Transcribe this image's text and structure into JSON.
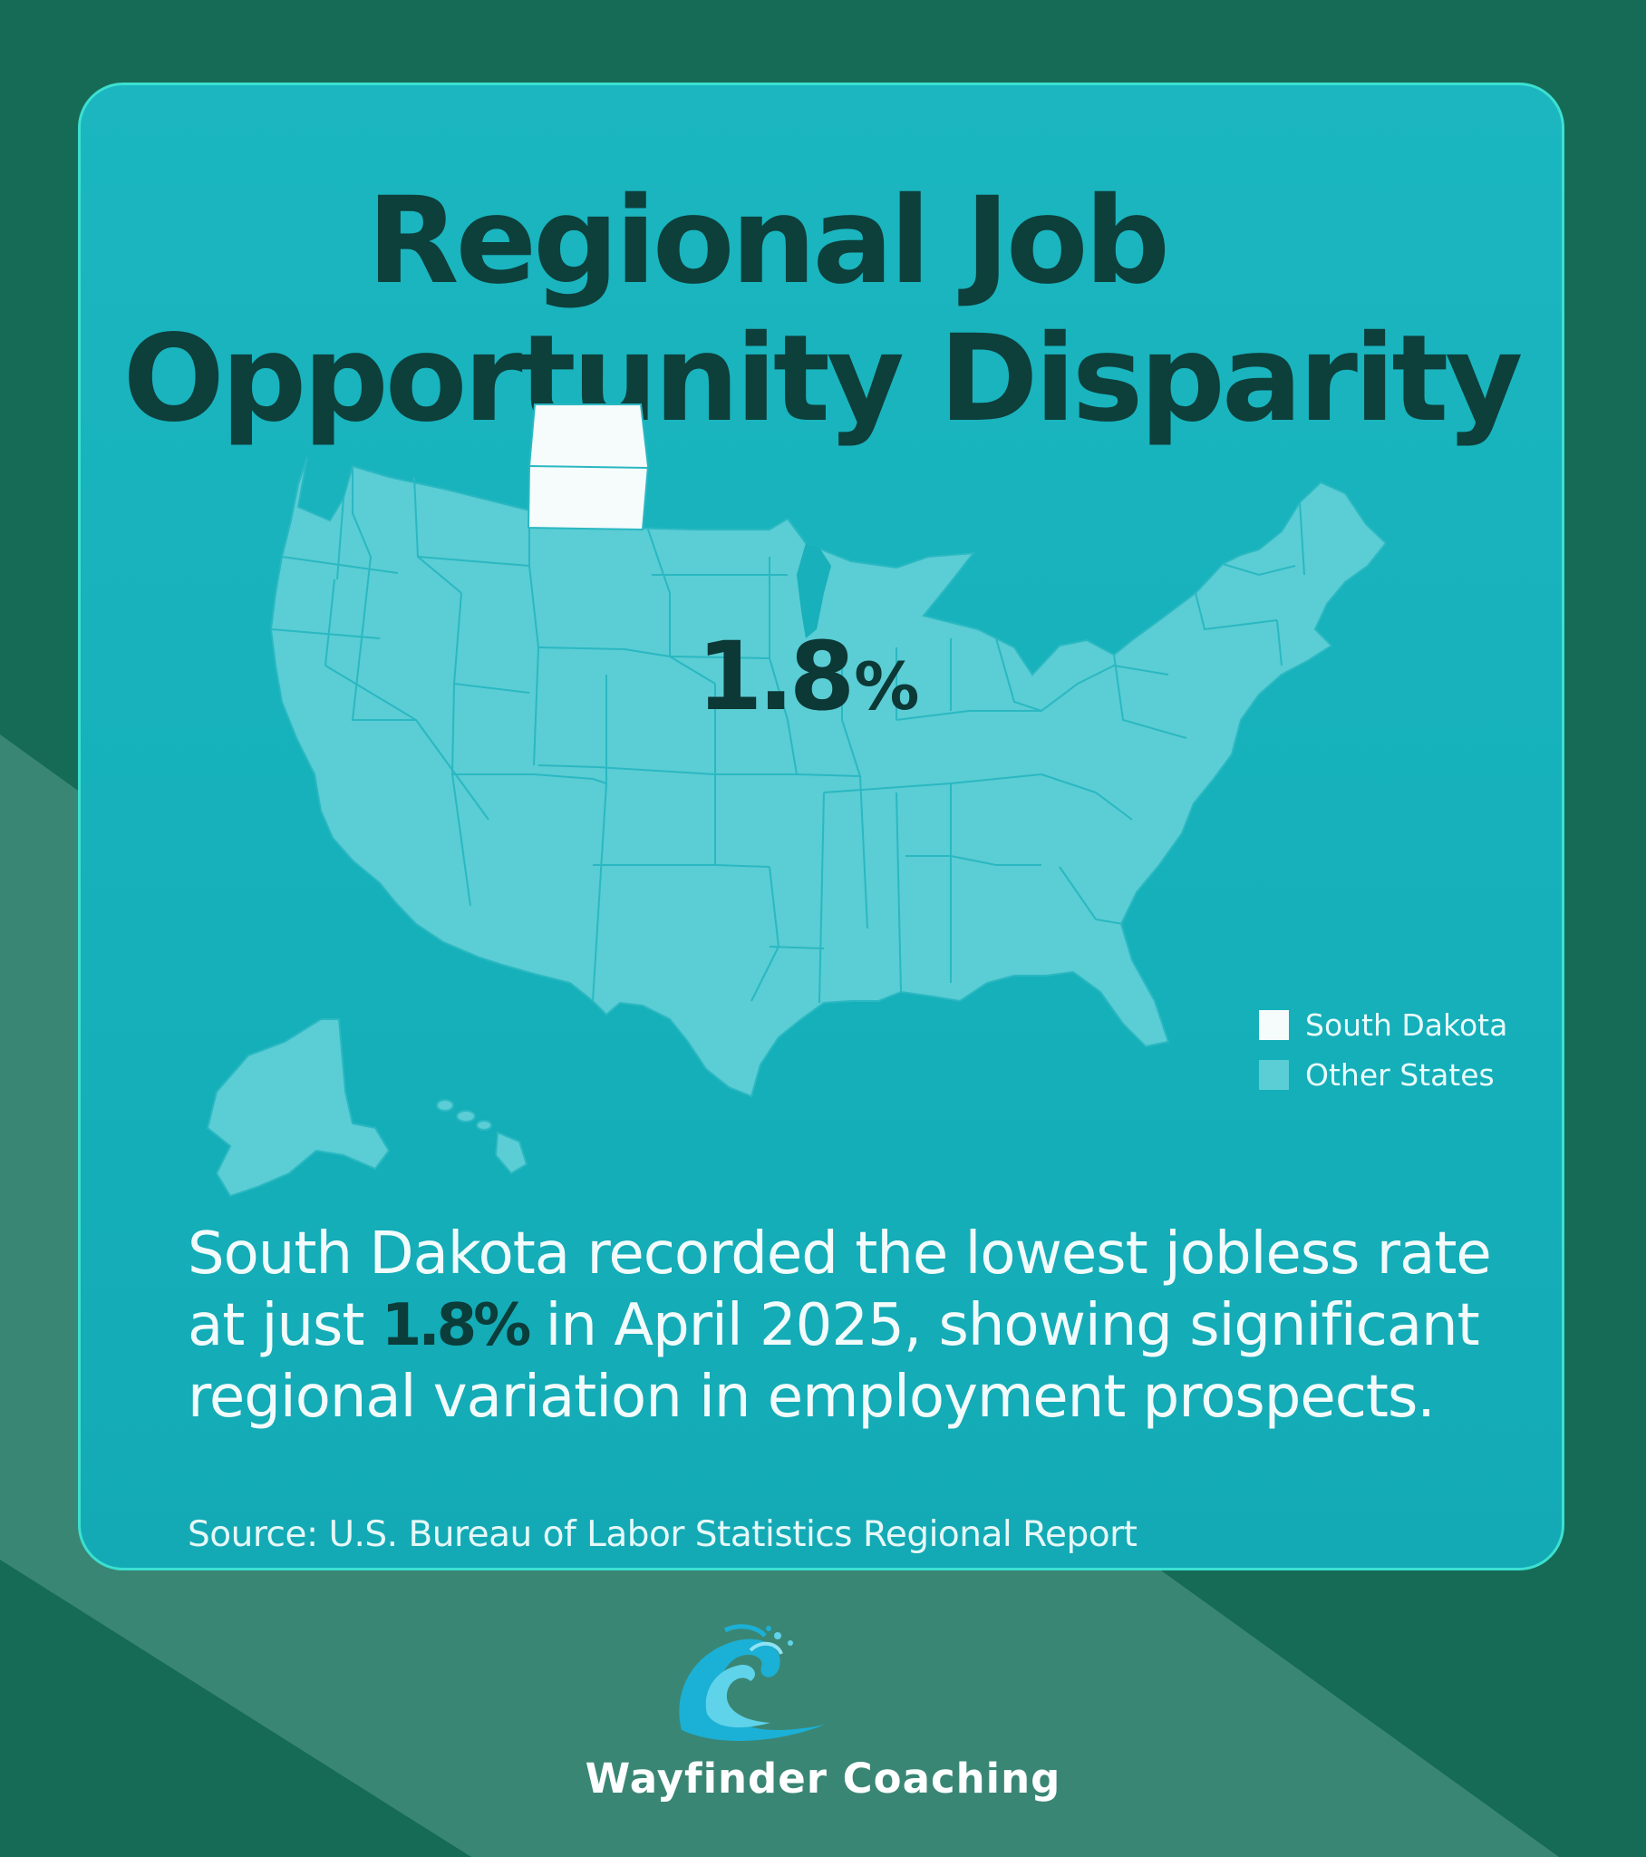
{
  "title_line1": "Regional Job",
  "title_line2": "Opportunity Disparity",
  "highlight": {
    "state": "South Dakota",
    "value": "1.8",
    "unit": "%"
  },
  "legend": [
    {
      "label": "South Dakota",
      "color": "#f6fbfb"
    },
    {
      "label": "Other States",
      "color": "#5bcdd4"
    }
  ],
  "summary": {
    "before": "South Dakota recorded the lowest jobless rate at just ",
    "highlight": "1.8%",
    "after": " in April 2025, showing significant regional variation in employment prospects."
  },
  "source": "Source: U.S. Bureau of Labor Statistics Regional Report",
  "brand": "Wayfinder Coaching",
  "colors": {
    "background": "#166b57",
    "stripe": "#3a8674",
    "card": "#15b0ba",
    "card_border": "#3ce0d0",
    "title": "#0d3f3b",
    "state_fill": "#5bcdd4",
    "highlight_fill": "#f6fbfb"
  }
}
